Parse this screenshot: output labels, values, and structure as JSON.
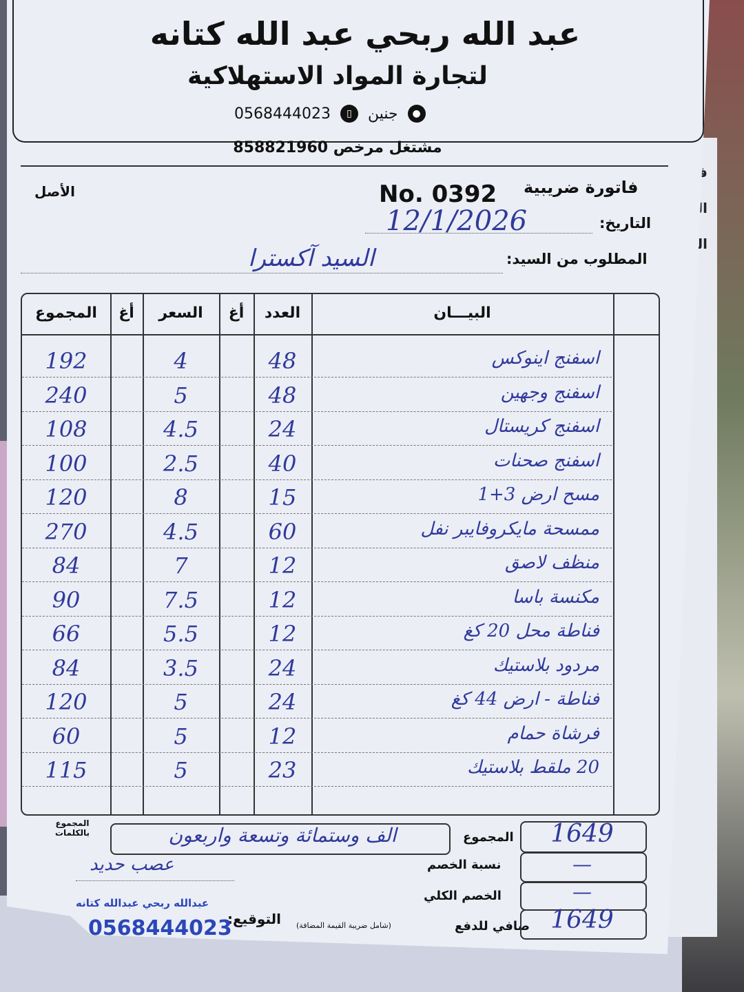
{
  "header": {
    "merchant_name": "عبد الله ربحي عبد الله كتانه",
    "business_type": "لتجارة المواد الاستهلاكية",
    "location": "جنين",
    "phone": "0568444023",
    "license_label": "مشتغل مرخص",
    "license_number": "858821960"
  },
  "invoice": {
    "type_label": "فاتورة ضريبية",
    "number": "No. 0392",
    "copy_label": "الأصل",
    "date_label": "التاريخ:",
    "date": "12/1/2026",
    "customer_label": "المطلوب من السيد:",
    "customer": "السيد آكسترا"
  },
  "table": {
    "headers": {
      "description": "البيـــان",
      "quantity": "العدد",
      "agh1": "أغ",
      "price": "السعر",
      "agh2": "أغ",
      "total": "المجموع"
    },
    "rows": [
      {
        "description": "اسفنج اينوكس",
        "quantity": "48",
        "price": "4",
        "total": "192"
      },
      {
        "description": "اسفنج وجهين",
        "quantity": "48",
        "price": "5",
        "total": "240"
      },
      {
        "description": "اسفنج كريستال",
        "quantity": "24",
        "price": "4.5",
        "total": "108"
      },
      {
        "description": "اسفنج صحنات",
        "quantity": "40",
        "price": "2.5",
        "total": "100"
      },
      {
        "description": "مسح ارض 3+1",
        "quantity": "15",
        "price": "8",
        "total": "120"
      },
      {
        "description": "ممسحة مايكروفايبر نفل",
        "quantity": "60",
        "price": "4.5",
        "total": "270"
      },
      {
        "description": "منظف لاصق",
        "quantity": "12",
        "price": "7",
        "total": "84"
      },
      {
        "description": "مكنسة باسا",
        "quantity": "12",
        "price": "7.5",
        "total": "90"
      },
      {
        "description": "فناطة محل 20 كغ",
        "quantity": "12",
        "price": "5.5",
        "total": "66"
      },
      {
        "description": "مردود بلاستيك",
        "quantity": "24",
        "price": "3.5",
        "total": "84"
      },
      {
        "description": "فناطة - ارض 44 كغ",
        "quantity": "24",
        "price": "5",
        "total": "120"
      },
      {
        "description": "فرشاة حمام",
        "quantity": "12",
        "price": "5",
        "total": "60"
      },
      {
        "description": "20 ملقط بلاستيك",
        "quantity": "23",
        "price": "5",
        "total": "115"
      }
    ]
  },
  "summary": {
    "total_words_label": "المجموع بالكلمات",
    "total_words": "الف وستمائة وتسعة واربعون",
    "total_label": "المجموع",
    "total": "1649",
    "discount_rate_label": "نسبة الخصم",
    "discount_rate": "—",
    "total_discount_label": "الخصم الكلي",
    "total_discount": "—",
    "net_label": "صافي للدفع",
    "net_note": "(شامل ضريبة القيمة المضافة)",
    "net": "1649",
    "note": "عصب حديد",
    "signature_label": "التوقيع:",
    "stamp_name": "عبدالله ربحي عبدالله كتانه",
    "stamp_phone": "0568444023"
  },
  "side_sheet": {
    "fragments": [
      "فات",
      "التا",
      "الم"
    ]
  },
  "colors": {
    "ink": "#2f3a9a",
    "stamp": "#2a47b8",
    "paper": "#eceef6"
  }
}
